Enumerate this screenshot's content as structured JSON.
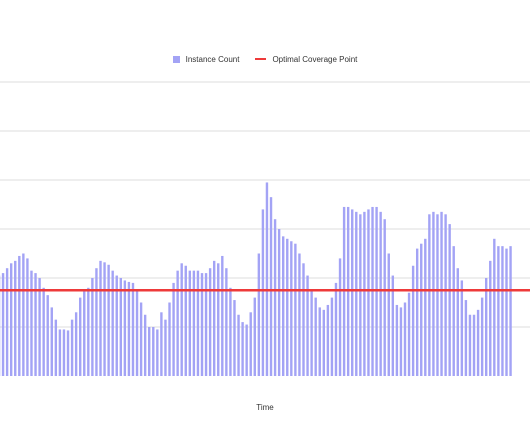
{
  "chart_data": {
    "type": "bar",
    "title": "",
    "xlabel": "Time",
    "ylabel": "",
    "grid": true,
    "legend_position": "top-center",
    "y_range": [
      0,
      6
    ],
    "series": [
      {
        "name": "Instance Count",
        "color": "#a3a3f5",
        "type": "bar",
        "values": [
          2.05,
          2.1,
          2.2,
          2.3,
          2.35,
          2.45,
          2.5,
          2.4,
          2.15,
          2.1,
          2.0,
          1.8,
          1.65,
          1.4,
          1.15,
          0.95,
          0.95,
          0.93,
          1.15,
          1.3,
          1.6,
          1.75,
          1.8,
          2.0,
          2.2,
          2.35,
          2.32,
          2.27,
          2.15,
          2.05,
          2.0,
          1.95,
          1.92,
          1.9,
          1.75,
          1.5,
          1.25,
          1.0,
          1.0,
          0.95,
          1.3,
          1.15,
          1.5,
          1.9,
          2.15,
          2.3,
          2.25,
          2.15,
          2.15,
          2.15,
          2.1,
          2.1,
          2.2,
          2.35,
          2.3,
          2.45,
          2.2,
          1.8,
          1.55,
          1.25,
          1.1,
          1.05,
          1.3,
          1.6,
          2.5,
          3.4,
          3.95,
          3.65,
          3.2,
          3.0,
          2.85,
          2.8,
          2.75,
          2.7,
          2.5,
          2.3,
          2.05,
          1.75,
          1.6,
          1.4,
          1.35,
          1.45,
          1.6,
          1.9,
          2.4,
          3.45,
          3.45,
          3.4,
          3.35,
          3.3,
          3.35,
          3.4,
          3.45,
          3.45,
          3.35,
          3.2,
          2.5,
          2.05,
          1.45,
          1.4,
          1.5,
          1.7,
          2.25,
          2.6,
          2.7,
          2.8,
          3.3,
          3.35,
          3.3,
          3.35,
          3.3,
          3.1,
          2.65,
          2.2,
          1.95,
          1.55,
          1.25,
          1.25,
          1.35,
          1.6,
          2.0,
          2.35,
          2.8,
          2.65,
          2.65,
          2.6,
          2.65
        ]
      },
      {
        "name": "Optimal Coverage Point",
        "color": "#ee3a3a",
        "type": "line",
        "value": 1.75
      }
    ]
  }
}
